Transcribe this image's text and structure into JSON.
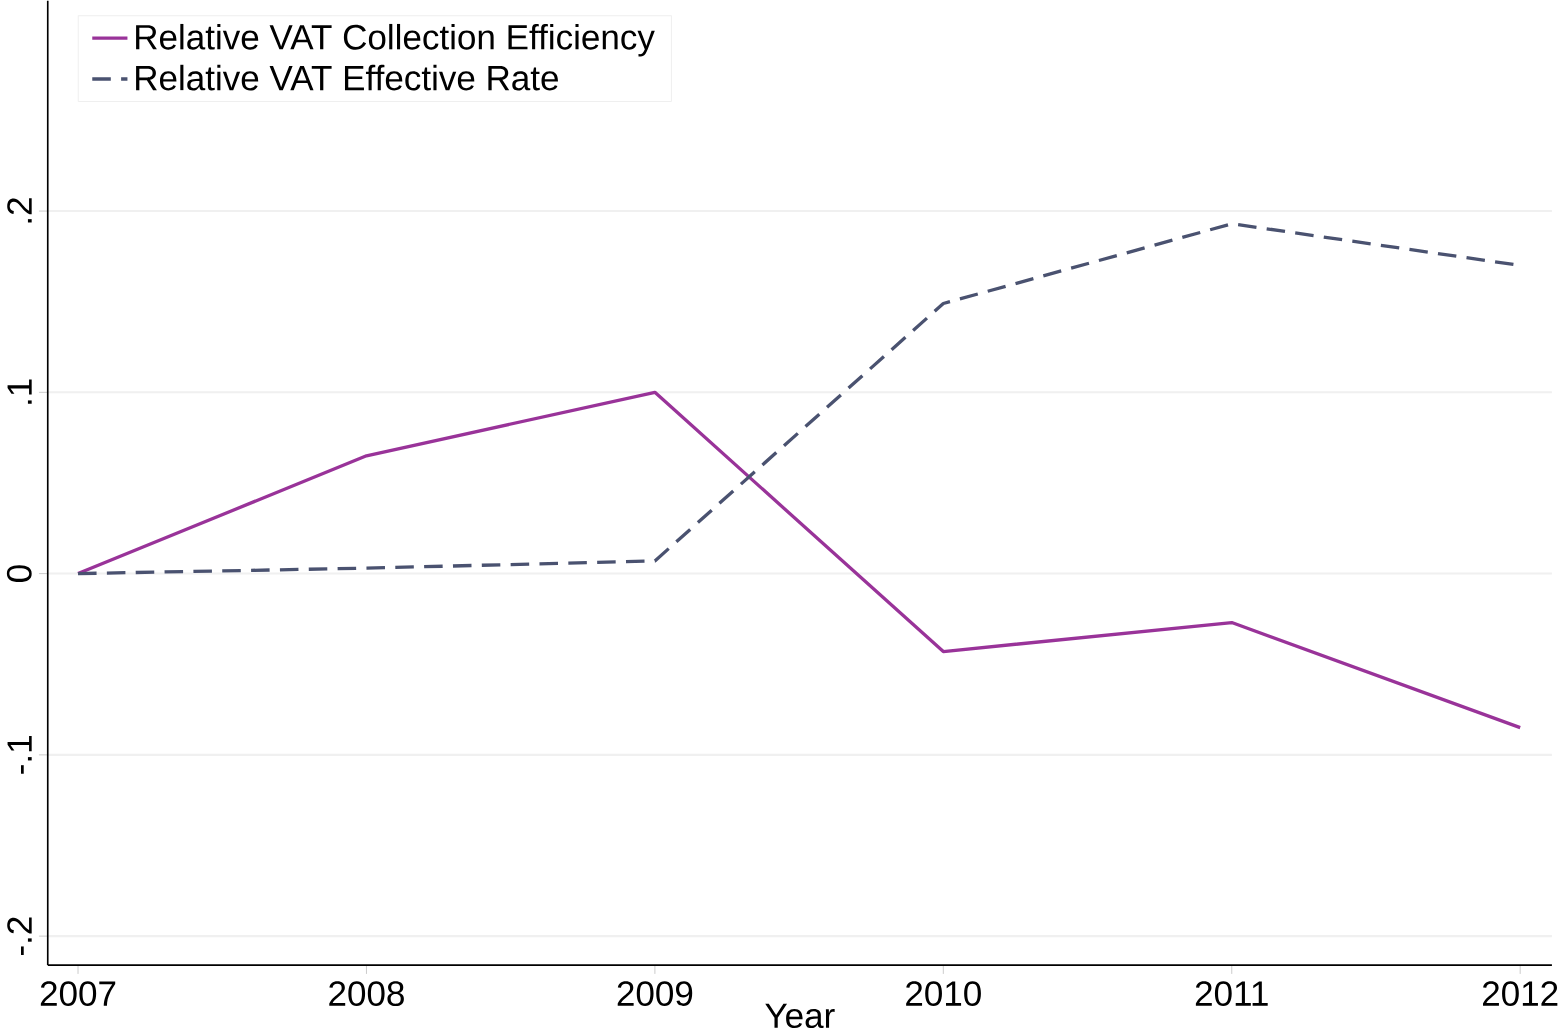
{
  "chart_data": {
    "type": "line",
    "xlabel": "Year",
    "x": [
      2007,
      2008,
      2009,
      2010,
      2011,
      2012
    ],
    "series": [
      {
        "name": "Relative VAT Collection Efficiency",
        "color": "#993399",
        "line_style": "solid",
        "values": [
          0,
          0.065,
          0.1,
          -0.043,
          -0.027,
          -0.085
        ]
      },
      {
        "name": "Relative VAT Effective Rate",
        "color": "#4a5270",
        "line_style": "dashed",
        "values": [
          0,
          0.003,
          0.007,
          0.149,
          0.193,
          0.17
        ]
      }
    ],
    "xlim": [
      2006.895,
      2012.11
    ],
    "ylim": [
      -0.216,
      0.316
    ],
    "xticks": [
      2007,
      2008,
      2009,
      2010,
      2011,
      2012
    ],
    "yticks": [
      {
        "value": -0.2,
        "label": "-.2"
      },
      {
        "value": -0.1,
        "label": "-.1"
      },
      0,
      {
        "value": 0.1,
        "label": ".1"
      },
      {
        "value": 0.2,
        "label": ".2"
      }
    ],
    "grid": "y",
    "legend": "top left",
    "marker": "none"
  }
}
